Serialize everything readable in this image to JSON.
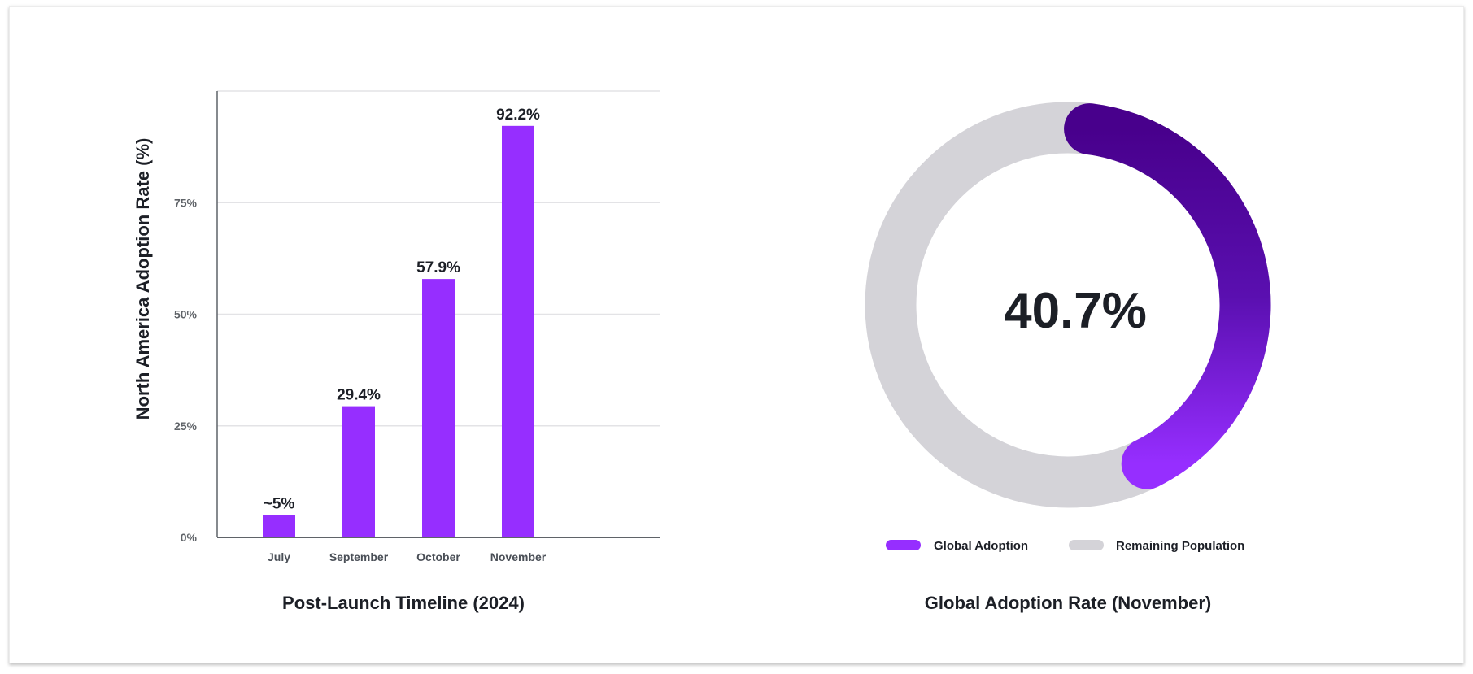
{
  "chart_data": [
    {
      "type": "bar",
      "categories": [
        "July",
        "September",
        "October",
        "November"
      ],
      "values": [
        5,
        29.4,
        57.9,
        92.2
      ],
      "data_labels": [
        "~5%",
        "29.4%",
        "57.9%",
        "92.2%"
      ],
      "xlabel": "Post-Launch Timeline (2024)",
      "ylabel": "North America Adoption Rate (%)",
      "ylim": [
        0,
        100
      ],
      "yticks": [
        0,
        25,
        50,
        75,
        100
      ],
      "ytick_labels": [
        "0%",
        "25%",
        "50%",
        "75%",
        ""
      ],
      "grid": true,
      "color": "#962EFF"
    },
    {
      "type": "pie",
      "variant": "donut",
      "title": "Global Adoption Rate (November)",
      "center_label": "40.7%",
      "slices": [
        {
          "name": "Global Adoption",
          "value": 40.7,
          "color": "#962EFF",
          "gradient_end": "#48008C"
        },
        {
          "name": "Remaining Population",
          "value": 59.3,
          "color": "#D4D3D8"
        }
      ],
      "legend_position": "bottom"
    }
  ]
}
